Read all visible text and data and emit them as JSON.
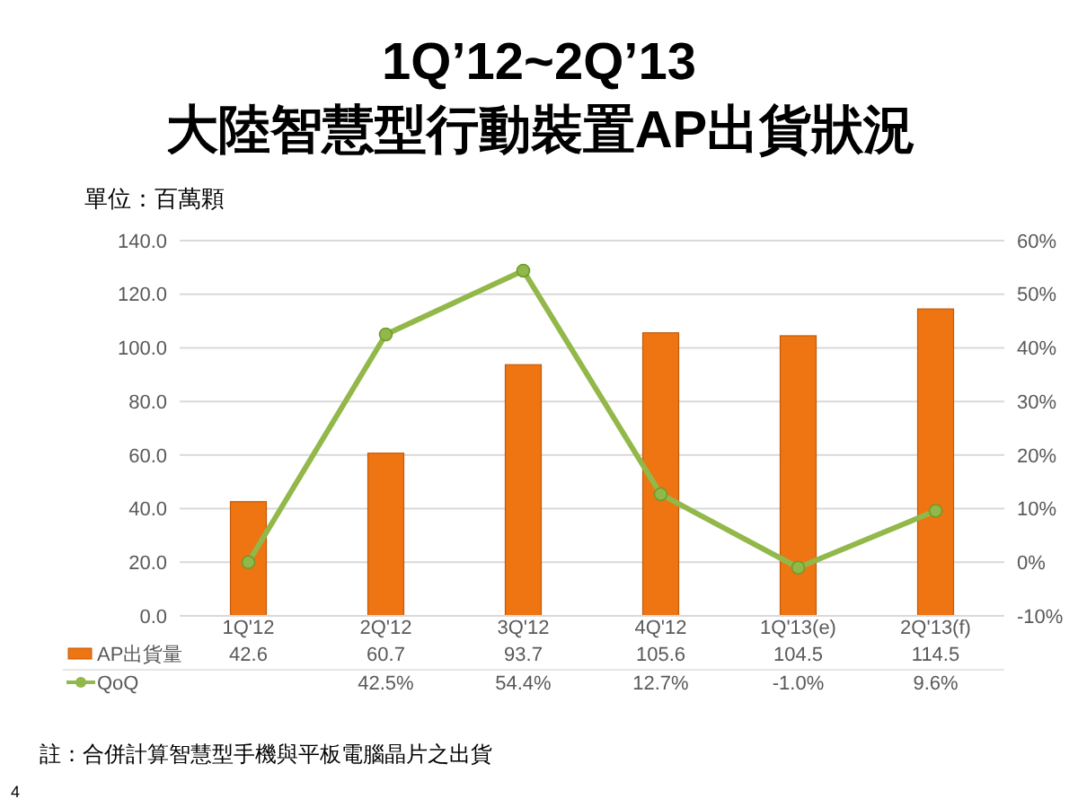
{
  "chart_data": {
    "type": "bar",
    "title": "1Q’12~2Q’13",
    "subtitle": "大陸智慧型行動裝置AP出貨狀況",
    "categories": [
      "1Q'12",
      "2Q'12",
      "3Q'12",
      "4Q'12",
      "1Q'13(e)",
      "2Q'13(f)"
    ],
    "series": [
      {
        "name": "AP出貨量",
        "color": "#ef7412",
        "values": [
          42.6,
          60.7,
          93.7,
          105.6,
          104.5,
          114.5
        ],
        "value_labels": [
          "42.6",
          "60.7",
          "93.7",
          "105.6",
          "104.5",
          "114.5"
        ]
      },
      {
        "name": "QoQ",
        "type": "line",
        "axis": "y2",
        "color": "#92b84a",
        "values": [
          0,
          42.5,
          54.4,
          12.7,
          -1.0,
          9.6
        ],
        "value_labels": [
          null,
          "42.5%",
          "54.4%",
          "12.7%",
          "-1.0%",
          "9.6%"
        ]
      }
    ],
    "ylim": [
      0,
      140
    ],
    "yticks": [
      {
        "value": 0,
        "label": "0.0"
      },
      {
        "value": 20,
        "label": "20.0"
      },
      {
        "value": 40,
        "label": "40.0"
      },
      {
        "value": 60,
        "label": "60.0"
      },
      {
        "value": 80,
        "label": "80.0"
      },
      {
        "value": 100,
        "label": "100.0"
      },
      {
        "value": 120,
        "label": "120.0"
      },
      {
        "value": 140,
        "label": "140.0"
      }
    ],
    "y2lim": [
      -10,
      60
    ],
    "y2ticks": [
      {
        "value": -10,
        "label": "-10%"
      },
      {
        "value": 0,
        "label": "0%"
      },
      {
        "value": 10,
        "label": "10%"
      },
      {
        "value": 20,
        "label": "20%"
      },
      {
        "value": 30,
        "label": "30%"
      },
      {
        "value": 40,
        "label": "40%"
      },
      {
        "value": 50,
        "label": "50%"
      },
      {
        "value": 60,
        "label": "60%"
      }
    ],
    "grid": "y",
    "legend": "bottom left",
    "marker": "circle",
    "line_style": "solid",
    "annotations": [
      "單位：百萬顆",
      "註：合併計算智慧型手機與平板電腦晶片之出貨",
      "4"
    ]
  }
}
